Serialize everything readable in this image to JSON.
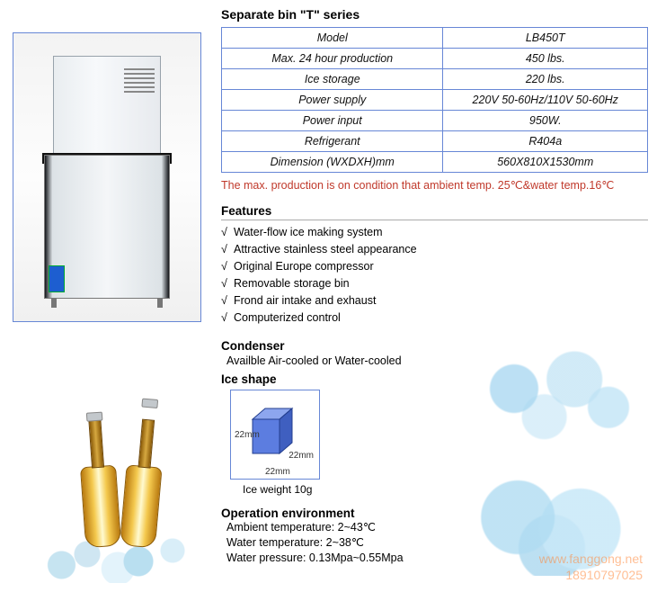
{
  "title": "Separate bin \"T\" series",
  "spec_rows": [
    {
      "label": "Model",
      "value": "LB450T"
    },
    {
      "label": "Max. 24 hour production",
      "value": "450 lbs."
    },
    {
      "label": "Ice storage",
      "value": "220 lbs."
    },
    {
      "label": "Power supply",
      "value": "220V 50-60Hz/110V 50-60Hz"
    },
    {
      "label": "Power input",
      "value": "950W."
    },
    {
      "label": "Refrigerant",
      "value": "R404a"
    },
    {
      "label": "Dimension (WXDXH)mm",
      "value": "560X810X1530mm"
    }
  ],
  "note": "The max. production is on condition that ambient temp. 25℃&water temp.16℃",
  "features_heading": "Features",
  "features": [
    "Water-flow ice making system",
    "Attractive stainless steel appearance",
    "Original Europe compressor",
    "Removable storage bin",
    "Frond air intake and exhaust",
    "Computerized control"
  ],
  "condenser_heading": "Condenser",
  "condenser_text": "Availble Air-cooled or Water-cooled",
  "ice_shape_heading": "Ice shape",
  "cube": {
    "w_mm": 22,
    "d_mm": 22,
    "h_mm": 22,
    "face_color": "#5c7de0",
    "top_color": "#8da6ee",
    "side_color": "#3f5fc0",
    "edge_color": "#243f8f",
    "labels": {
      "bottom": "22mm",
      "right": "22mm",
      "left": "22mm"
    }
  },
  "ice_weight": "Ice weight 10g",
  "env_heading": "Operation environment",
  "env": {
    "ambient": "Ambient temperature: 2~43℃",
    "water_temp": "Water temperature: 2~38℃",
    "water_pressure": "Water pressure: 0.13Mpa~0.55Mpa"
  },
  "watermark": {
    "url": "www.fanggong.net",
    "phone": "18910797025",
    "color": "#ff8a3d"
  },
  "colors": {
    "table_border": "#6787d6",
    "note_color": "#c0392b",
    "text": "#000000",
    "background": "#ffffff"
  },
  "product_photo_alt": "ice-maker-machine"
}
